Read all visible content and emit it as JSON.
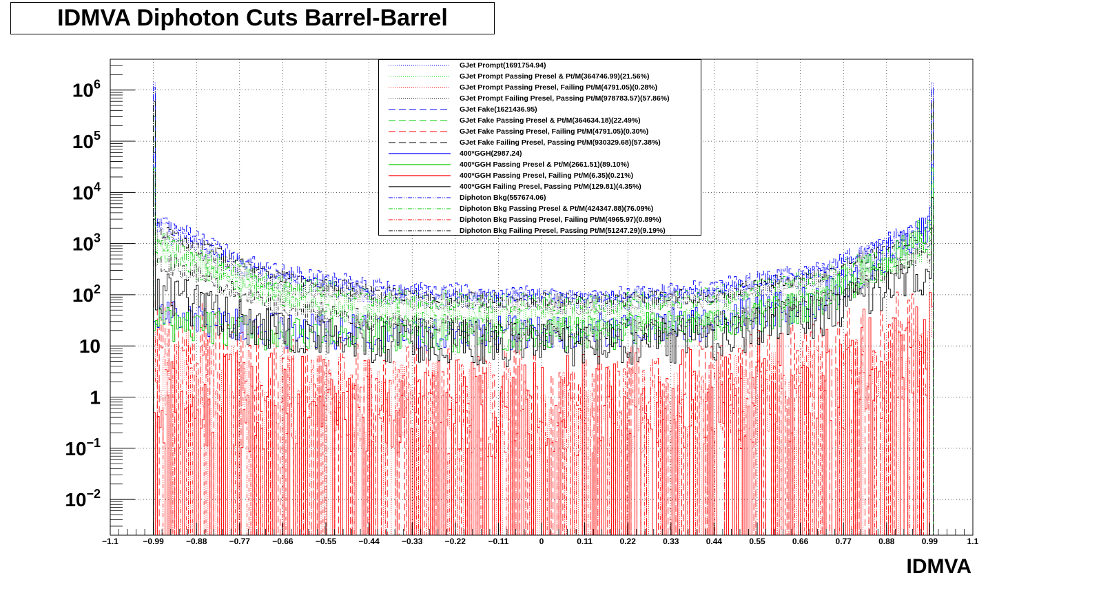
{
  "chart_data": {
    "type": "line",
    "title": "IDMVA Diphoton Cuts Barrel-Barrel",
    "xlabel": "IDMVA",
    "ylabel": "",
    "xlim": [
      -1.1,
      1.1
    ],
    "ylim": [
      0.002,
      4000000
    ],
    "y_scale": "log",
    "grid": true,
    "legend_position": "top-center",
    "x_ticks": [
      "−1.1",
      "−0.99",
      "−0.88",
      "−0.77",
      "−0.66",
      "−0.55",
      "−0.44",
      "−0.33",
      "−0.22",
      "−0.11",
      "0",
      "0.11",
      "0.22",
      "0.33",
      "0.44",
      "0.55",
      "0.66",
      "0.77",
      "0.88",
      "0.99",
      "1.1"
    ],
    "x_tick_values": [
      -1.1,
      -0.99,
      -0.88,
      -0.77,
      -0.66,
      -0.55,
      -0.44,
      -0.33,
      -0.22,
      -0.11,
      0,
      0.11,
      0.22,
      0.33,
      0.44,
      0.55,
      0.66,
      0.77,
      0.88,
      0.99,
      1.1
    ],
    "y_ticks": [
      {
        "value": 0.01,
        "base": "10",
        "exp": "−2"
      },
      {
        "value": 0.1,
        "base": "10",
        "exp": "−1"
      },
      {
        "value": 1,
        "base": "1",
        "exp": ""
      },
      {
        "value": 10,
        "base": "10",
        "exp": ""
      },
      {
        "value": 100,
        "base": "10",
        "exp": "2"
      },
      {
        "value": 1000,
        "base": "10",
        "exp": "3"
      },
      {
        "value": 10000,
        "base": "10",
        "exp": "4"
      },
      {
        "value": 100000,
        "base": "10",
        "exp": "5"
      },
      {
        "value": 1000000,
        "base": "10",
        "exp": "6"
      }
    ],
    "series": [
      {
        "name": "GJet Prompt(1691754.94)",
        "color": "#0000ff",
        "dash": "dotted",
        "edge_left": 1400000,
        "edge_right": 1400000,
        "shape": [
          1800,
          200,
          90,
          70,
          65,
          90,
          200,
          1100
        ],
        "noise": 0.15
      },
      {
        "name": "GJet Prompt Passing Presel & Pt/M(364746.99)(21.56%)",
        "color": "#00cc00",
        "dash": "dotted",
        "edge_left": 500000,
        "edge_right": 500000,
        "shape": [
          900,
          120,
          55,
          40,
          35,
          45,
          110,
          700
        ],
        "noise": 0.2
      },
      {
        "name": "GJet Prompt Passing Presel, Failing Pt/M(4791.05)(0.28%)",
        "color": "#ff0000",
        "dash": "dotted",
        "edge_left": 10,
        "edge_right": 80,
        "shape": [
          4,
          1.5,
          0.8,
          0.6,
          0.6,
          0.7,
          1.5,
          8
        ],
        "noise": 0.9
      },
      {
        "name": "GJet Prompt Failing Presel, Passing Pt/M(978783.57)(57.86%)",
        "color": "#000000",
        "dash": "dotted",
        "edge_left": 900000,
        "edge_right": 900000,
        "shape": [
          1500,
          170,
          80,
          60,
          55,
          75,
          180,
          1000
        ],
        "noise": 0.15
      },
      {
        "name": "GJet Fake(1621436.95)",
        "color": "#0000ff",
        "dash": "dashed",
        "edge_left": 1100000,
        "edge_right": 1100000,
        "shape": [
          3000,
          350,
          150,
          110,
          100,
          140,
          350,
          3000
        ],
        "noise": 0.15
      },
      {
        "name": "GJet Fake Passing Presel & Pt/M(364634.18)(22.49%)",
        "color": "#00cc00",
        "dash": "dashed",
        "edge_left": 300000,
        "edge_right": 300000,
        "shape": [
          1200,
          200,
          90,
          70,
          65,
          90,
          220,
          1500
        ],
        "noise": 0.2
      },
      {
        "name": "GJet Fake Passing Presel, Failing Pt/M(4791.05)(0.30%)",
        "color": "#ff0000",
        "dash": "dashed",
        "edge_left": 80,
        "edge_right": 200,
        "shape": [
          20,
          5,
          2,
          1.5,
          1.5,
          2,
          6,
          30
        ],
        "noise": 0.8
      },
      {
        "name": "GJet Fake Failing Presel, Passing Pt/M(930329.68)(57.38%)",
        "color": "#000000",
        "dash": "dashed",
        "edge_left": 600000,
        "edge_right": 600000,
        "shape": [
          2000,
          250,
          110,
          80,
          75,
          100,
          250,
          2000
        ],
        "noise": 0.15
      },
      {
        "name": "400*GGH(2987.24)",
        "color": "#0000ff",
        "dash": "solid",
        "edge_left": 30,
        "edge_right": 35000,
        "shape": [
          40,
          20,
          18,
          18,
          20,
          28,
          80,
          2500
        ],
        "noise": 0.35
      },
      {
        "name": "400*GGH Passing Presel & Pt/M(2661.51)(89.10%)",
        "color": "#00cc00",
        "dash": "solid",
        "edge_left": 20,
        "edge_right": 30000,
        "shape": [
          30,
          18,
          16,
          16,
          18,
          25,
          70,
          2200
        ],
        "noise": 0.35
      },
      {
        "name": "400*GGH Passing Presel, Failing Pt/M(6.35)(0.21%)",
        "color": "#ff0000",
        "dash": "solid",
        "edge_left": 0.5,
        "edge_right": 60,
        "shape": [
          1,
          0.8,
          0.6,
          0.6,
          0.7,
          1,
          3,
          15
        ],
        "noise": 1.0
      },
      {
        "name": "400*GGH Failing Presel, Passing Pt/M(129.81)(4.35%)",
        "color": "#000000",
        "dash": "solid",
        "edge_left": 3000,
        "edge_right": 2000,
        "shape": [
          120,
          22,
          12,
          11,
          11,
          14,
          40,
          300
        ],
        "noise": 0.45
      },
      {
        "name": "Diphoton Bkg(557674.06)",
        "color": "#0000ff",
        "dash": "dashdotdot",
        "edge_left": 60000,
        "edge_right": 25000,
        "shape": [
          2500,
          280,
          120,
          95,
          90,
          120,
          300,
          2500
        ],
        "noise": 0.12
      },
      {
        "name": "Diphoton Bkg Passing Presel & Pt/M(424347.88)(76.09%)",
        "color": "#00cc00",
        "dash": "dashdotdot",
        "edge_left": 30000,
        "edge_right": 15000,
        "shape": [
          600,
          90,
          35,
          25,
          22,
          30,
          90,
          800
        ],
        "noise": 0.2
      },
      {
        "name": "Diphoton Bkg Passing Presel, Failing Pt/M(4965.97)(0.89%)",
        "color": "#ff0000",
        "dash": "dashdotdot",
        "edge_left": 15,
        "edge_right": 30,
        "shape": [
          3,
          1.2,
          0.7,
          0.5,
          0.5,
          0.6,
          1.2,
          6
        ],
        "noise": 0.9
      },
      {
        "name": "Diphoton Bkg Failing Presel, Passing Pt/M(51247.29)(9.19%)",
        "color": "#000000",
        "dash": "dashdotdot",
        "edge_left": 25000,
        "edge_right": 8000,
        "shape": [
          500,
          70,
          30,
          22,
          20,
          28,
          80,
          700
        ],
        "noise": 0.2
      }
    ]
  }
}
